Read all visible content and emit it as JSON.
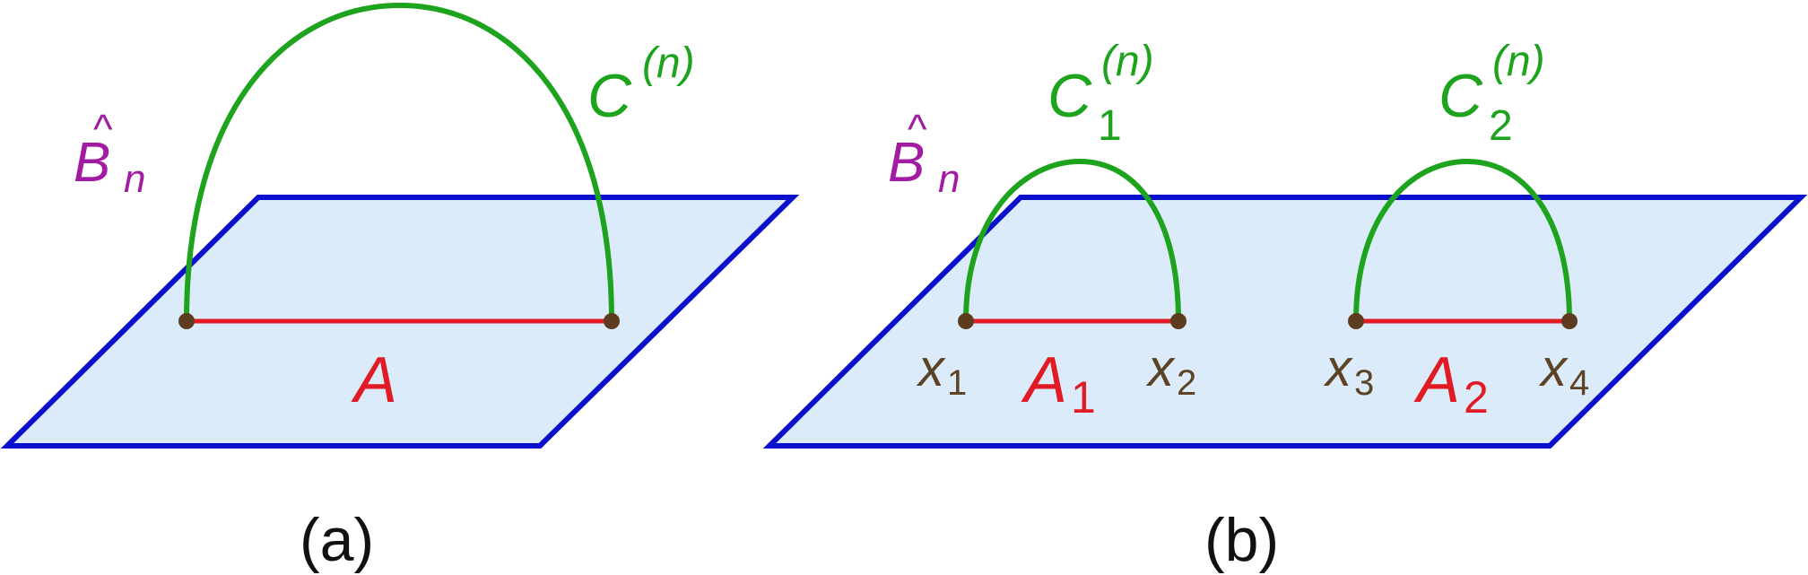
{
  "colors": {
    "plane_fill": "#dcebf9",
    "plane_stroke": "#0a10cc",
    "segment": "#e01b24",
    "arc": "#1da31d",
    "endpoint": "#5c3b1e",
    "surface_label": "#a21ba2",
    "point_label": "#5c4326",
    "caption": "#111111"
  },
  "panel_a": {
    "surface_label": {
      "base": "B",
      "hat": "^",
      "sub": "n"
    },
    "curve_label": {
      "base": "C",
      "sup": "(n)"
    },
    "interval_label": {
      "base": "A"
    },
    "caption": "(a)"
  },
  "panel_b": {
    "surface_label": {
      "base": "B",
      "hat": "^",
      "sub": "n"
    },
    "curve1_label": {
      "base": "C",
      "sub": "1",
      "sup": "(n)"
    },
    "curve2_label": {
      "base": "C",
      "sub": "2",
      "sup": "(n)"
    },
    "interval1_label": {
      "base": "A",
      "sub": "1"
    },
    "interval2_label": {
      "base": "A",
      "sub": "2"
    },
    "points": [
      {
        "base": "x",
        "sub": "1"
      },
      {
        "base": "x",
        "sub": "2"
      },
      {
        "base": "x",
        "sub": "3"
      },
      {
        "base": "x",
        "sub": "4"
      }
    ],
    "caption": "(b)"
  }
}
